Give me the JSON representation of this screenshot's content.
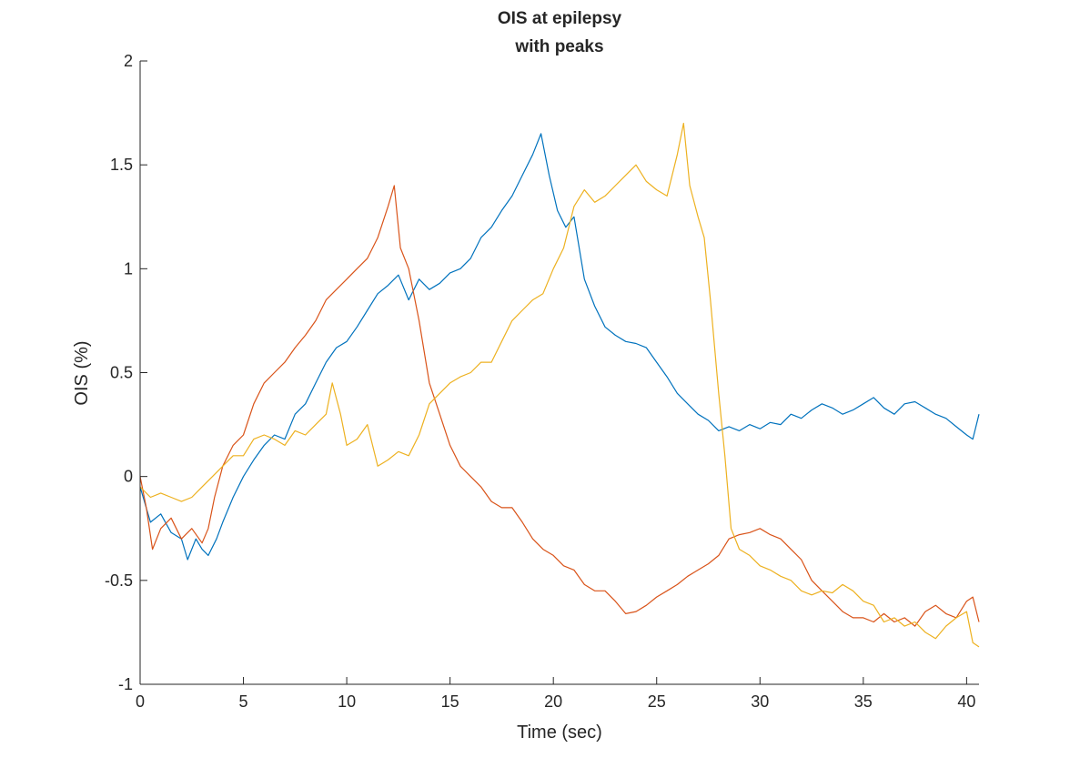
{
  "chart_data": {
    "type": "line",
    "title": [
      "OIS at epilepsy",
      "with peaks"
    ],
    "xlabel": "Time (sec)",
    "ylabel": "OIS (%)",
    "xlim": [
      0,
      40.6
    ],
    "ylim": [
      -1,
      2
    ],
    "xticks": [
      0,
      5,
      10,
      15,
      20,
      25,
      30,
      35,
      40
    ],
    "yticks": [
      -1,
      -0.5,
      0,
      0.5,
      1,
      1.5,
      2
    ],
    "xtick_labels": [
      "0",
      "5",
      "10",
      "15",
      "20",
      "25",
      "30",
      "35",
      "40"
    ],
    "ytick_labels": [
      "-1",
      "-0.5",
      "0",
      "0.5",
      "1",
      "1.5",
      "2"
    ],
    "grid": false,
    "series": [
      {
        "color": "#0072BD",
        "x": [
          0,
          0.5,
          1,
          1.5,
          2,
          2.3,
          2.7,
          3,
          3.3,
          3.7,
          4,
          4.5,
          5,
          5.5,
          6,
          6.5,
          7,
          7.5,
          8,
          8.5,
          9,
          9.5,
          10,
          10.5,
          11,
          11.5,
          12,
          12.5,
          13,
          13.5,
          14,
          14.5,
          15,
          15.5,
          16,
          16.5,
          17,
          17.5,
          18,
          18.5,
          19,
          19.4,
          19.8,
          20.2,
          20.6,
          21,
          21.5,
          22,
          22.5,
          23,
          23.5,
          24,
          24.5,
          25,
          25.5,
          26,
          26.5,
          27,
          27.5,
          28,
          28.5,
          29,
          29.5,
          30,
          30.5,
          31,
          31.5,
          32,
          32.5,
          33,
          33.5,
          34,
          34.5,
          35,
          35.5,
          36,
          36.5,
          37,
          37.5,
          38,
          38.5,
          39,
          39.5,
          40,
          40.3,
          40.6
        ],
        "y": [
          -0.05,
          -0.22,
          -0.18,
          -0.27,
          -0.3,
          -0.4,
          -0.3,
          -0.35,
          -0.38,
          -0.3,
          -0.22,
          -0.1,
          0.0,
          0.08,
          0.15,
          0.2,
          0.18,
          0.3,
          0.35,
          0.45,
          0.55,
          0.62,
          0.65,
          0.72,
          0.8,
          0.88,
          0.92,
          0.97,
          0.85,
          0.95,
          0.9,
          0.93,
          0.98,
          1.0,
          1.05,
          1.15,
          1.2,
          1.28,
          1.35,
          1.45,
          1.55,
          1.65,
          1.45,
          1.28,
          1.2,
          1.25,
          0.95,
          0.82,
          0.72,
          0.68,
          0.65,
          0.64,
          0.62,
          0.55,
          0.48,
          0.4,
          0.35,
          0.3,
          0.27,
          0.22,
          0.24,
          0.22,
          0.25,
          0.23,
          0.26,
          0.25,
          0.3,
          0.28,
          0.32,
          0.35,
          0.33,
          0.3,
          0.32,
          0.35,
          0.38,
          0.33,
          0.3,
          0.35,
          0.36,
          0.33,
          0.3,
          0.28,
          0.24,
          0.2,
          0.18,
          0.3
        ]
      },
      {
        "color": "#D95319",
        "x": [
          0,
          0.3,
          0.6,
          1,
          1.5,
          2,
          2.5,
          3,
          3.3,
          3.6,
          4,
          4.5,
          5,
          5.5,
          6,
          6.5,
          7,
          7.5,
          8,
          8.5,
          9,
          9.5,
          10,
          10.5,
          11,
          11.5,
          12,
          12.3,
          12.6,
          13,
          13.5,
          14,
          14.5,
          15,
          15.5,
          16,
          16.5,
          17,
          17.5,
          18,
          18.5,
          19,
          19.5,
          20,
          20.5,
          21,
          21.5,
          22,
          22.5,
          23,
          23.5,
          24,
          24.5,
          25,
          25.5,
          26,
          26.5,
          27,
          27.5,
          28,
          28.5,
          29,
          29.5,
          30,
          30.5,
          31,
          31.5,
          32,
          32.5,
          33,
          33.5,
          34,
          34.5,
          35,
          35.5,
          36,
          36.5,
          37,
          37.5,
          38,
          38.5,
          39,
          39.5,
          40,
          40.3,
          40.6
        ],
        "y": [
          0.0,
          -0.15,
          -0.35,
          -0.25,
          -0.2,
          -0.3,
          -0.25,
          -0.32,
          -0.25,
          -0.1,
          0.05,
          0.15,
          0.2,
          0.35,
          0.45,
          0.5,
          0.55,
          0.62,
          0.68,
          0.75,
          0.85,
          0.9,
          0.95,
          1.0,
          1.05,
          1.15,
          1.3,
          1.4,
          1.1,
          1.0,
          0.75,
          0.45,
          0.3,
          0.15,
          0.05,
          0.0,
          -0.05,
          -0.12,
          -0.15,
          -0.15,
          -0.22,
          -0.3,
          -0.35,
          -0.38,
          -0.43,
          -0.45,
          -0.52,
          -0.55,
          -0.55,
          -0.6,
          -0.66,
          -0.65,
          -0.62,
          -0.58,
          -0.55,
          -0.52,
          -0.48,
          -0.45,
          -0.42,
          -0.38,
          -0.3,
          -0.28,
          -0.27,
          -0.25,
          -0.28,
          -0.3,
          -0.35,
          -0.4,
          -0.5,
          -0.55,
          -0.6,
          -0.65,
          -0.68,
          -0.68,
          -0.7,
          -0.66,
          -0.7,
          -0.68,
          -0.72,
          -0.65,
          -0.62,
          -0.66,
          -0.68,
          -0.6,
          -0.58,
          -0.7
        ]
      },
      {
        "color": "#EDB120",
        "x": [
          0,
          0.5,
          1,
          1.5,
          2,
          2.5,
          3,
          3.5,
          4,
          4.5,
          5,
          5.5,
          6,
          6.5,
          7,
          7.5,
          8,
          8.5,
          9,
          9.3,
          9.7,
          10,
          10.5,
          11,
          11.5,
          12,
          12.5,
          13,
          13.5,
          14,
          14.5,
          15,
          15.5,
          16,
          16.5,
          17,
          17.5,
          18,
          18.5,
          19,
          19.5,
          20,
          20.5,
          21,
          21.5,
          22,
          22.5,
          23,
          23.5,
          24,
          24.5,
          25,
          25.5,
          26,
          26.3,
          26.6,
          27,
          27.3,
          27.6,
          28,
          28.3,
          28.6,
          29,
          29.5,
          30,
          30.5,
          31,
          31.5,
          32,
          32.5,
          33,
          33.5,
          34,
          34.5,
          35,
          35.5,
          36,
          36.5,
          37,
          37.5,
          38,
          38.5,
          39,
          39.5,
          40,
          40.3,
          40.6
        ],
        "y": [
          -0.05,
          -0.1,
          -0.08,
          -0.1,
          -0.12,
          -0.1,
          -0.05,
          0.0,
          0.05,
          0.1,
          0.1,
          0.18,
          0.2,
          0.18,
          0.15,
          0.22,
          0.2,
          0.25,
          0.3,
          0.45,
          0.3,
          0.15,
          0.18,
          0.25,
          0.05,
          0.08,
          0.12,
          0.1,
          0.2,
          0.35,
          0.4,
          0.45,
          0.48,
          0.5,
          0.55,
          0.55,
          0.65,
          0.75,
          0.8,
          0.85,
          0.88,
          1.0,
          1.1,
          1.3,
          1.38,
          1.32,
          1.35,
          1.4,
          1.45,
          1.5,
          1.42,
          1.38,
          1.35,
          1.55,
          1.7,
          1.4,
          1.25,
          1.15,
          0.85,
          0.4,
          0.1,
          -0.25,
          -0.35,
          -0.38,
          -0.43,
          -0.45,
          -0.48,
          -0.5,
          -0.55,
          -0.57,
          -0.55,
          -0.56,
          -0.52,
          -0.55,
          -0.6,
          -0.62,
          -0.7,
          -0.68,
          -0.72,
          -0.7,
          -0.75,
          -0.78,
          -0.72,
          -0.68,
          -0.65,
          -0.8,
          -0.82
        ]
      }
    ]
  }
}
